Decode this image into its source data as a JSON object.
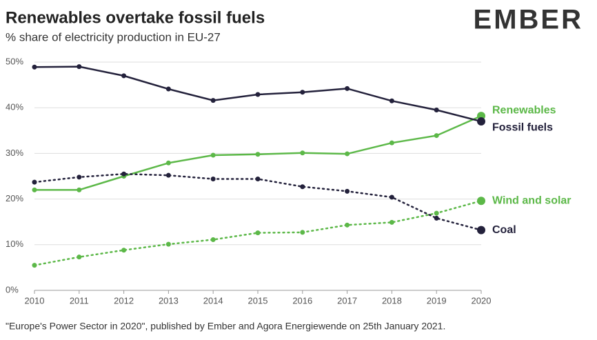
{
  "chart_data": {
    "type": "line",
    "title": "Renewables overtake fossil fuels",
    "subtitle": "% share of electricity production in EU-27",
    "logo": "EMBER",
    "source": "\"Europe's Power Sector in 2020\", published by Ember and Agora Energiewende on 25th January 2021.",
    "x": [
      2010,
      2011,
      2012,
      2013,
      2014,
      2015,
      2016,
      2017,
      2018,
      2019,
      2020
    ],
    "xlim": [
      2010,
      2020
    ],
    "xticks": [
      2010,
      2011,
      2012,
      2013,
      2014,
      2015,
      2016,
      2017,
      2018,
      2019,
      2020
    ],
    "ylim": [
      0,
      50
    ],
    "yticks": [
      {
        "value": 0,
        "label": "0%"
      },
      {
        "value": 10,
        "label": "10%"
      },
      {
        "value": 20,
        "label": "20%"
      },
      {
        "value": 30,
        "label": "30%"
      },
      {
        "value": 40,
        "label": "40%"
      },
      {
        "value": 50,
        "label": "50%"
      }
    ],
    "grid": true,
    "series": [
      {
        "name": "Renewables",
        "color": "#5cb848",
        "style": "solid",
        "values": [
          22.0,
          22.0,
          25.0,
          27.9,
          29.6,
          29.8,
          30.1,
          29.9,
          32.3,
          33.9,
          38.2
        ]
      },
      {
        "name": "Fossil fuels",
        "color": "#23213b",
        "style": "solid",
        "values": [
          48.9,
          49.0,
          47.0,
          44.1,
          41.6,
          42.9,
          43.4,
          44.2,
          41.5,
          39.5,
          37.0
        ]
      },
      {
        "name": "Wind and solar",
        "color": "#5cb848",
        "style": "dotted",
        "values": [
          5.5,
          7.3,
          8.8,
          10.1,
          11.1,
          12.6,
          12.7,
          14.3,
          14.9,
          16.9,
          19.6
        ]
      },
      {
        "name": "Coal",
        "color": "#23213b",
        "style": "dotted",
        "values": [
          23.7,
          24.8,
          25.5,
          25.2,
          24.4,
          24.4,
          22.7,
          21.7,
          20.4,
          15.8,
          13.2
        ]
      }
    ]
  }
}
